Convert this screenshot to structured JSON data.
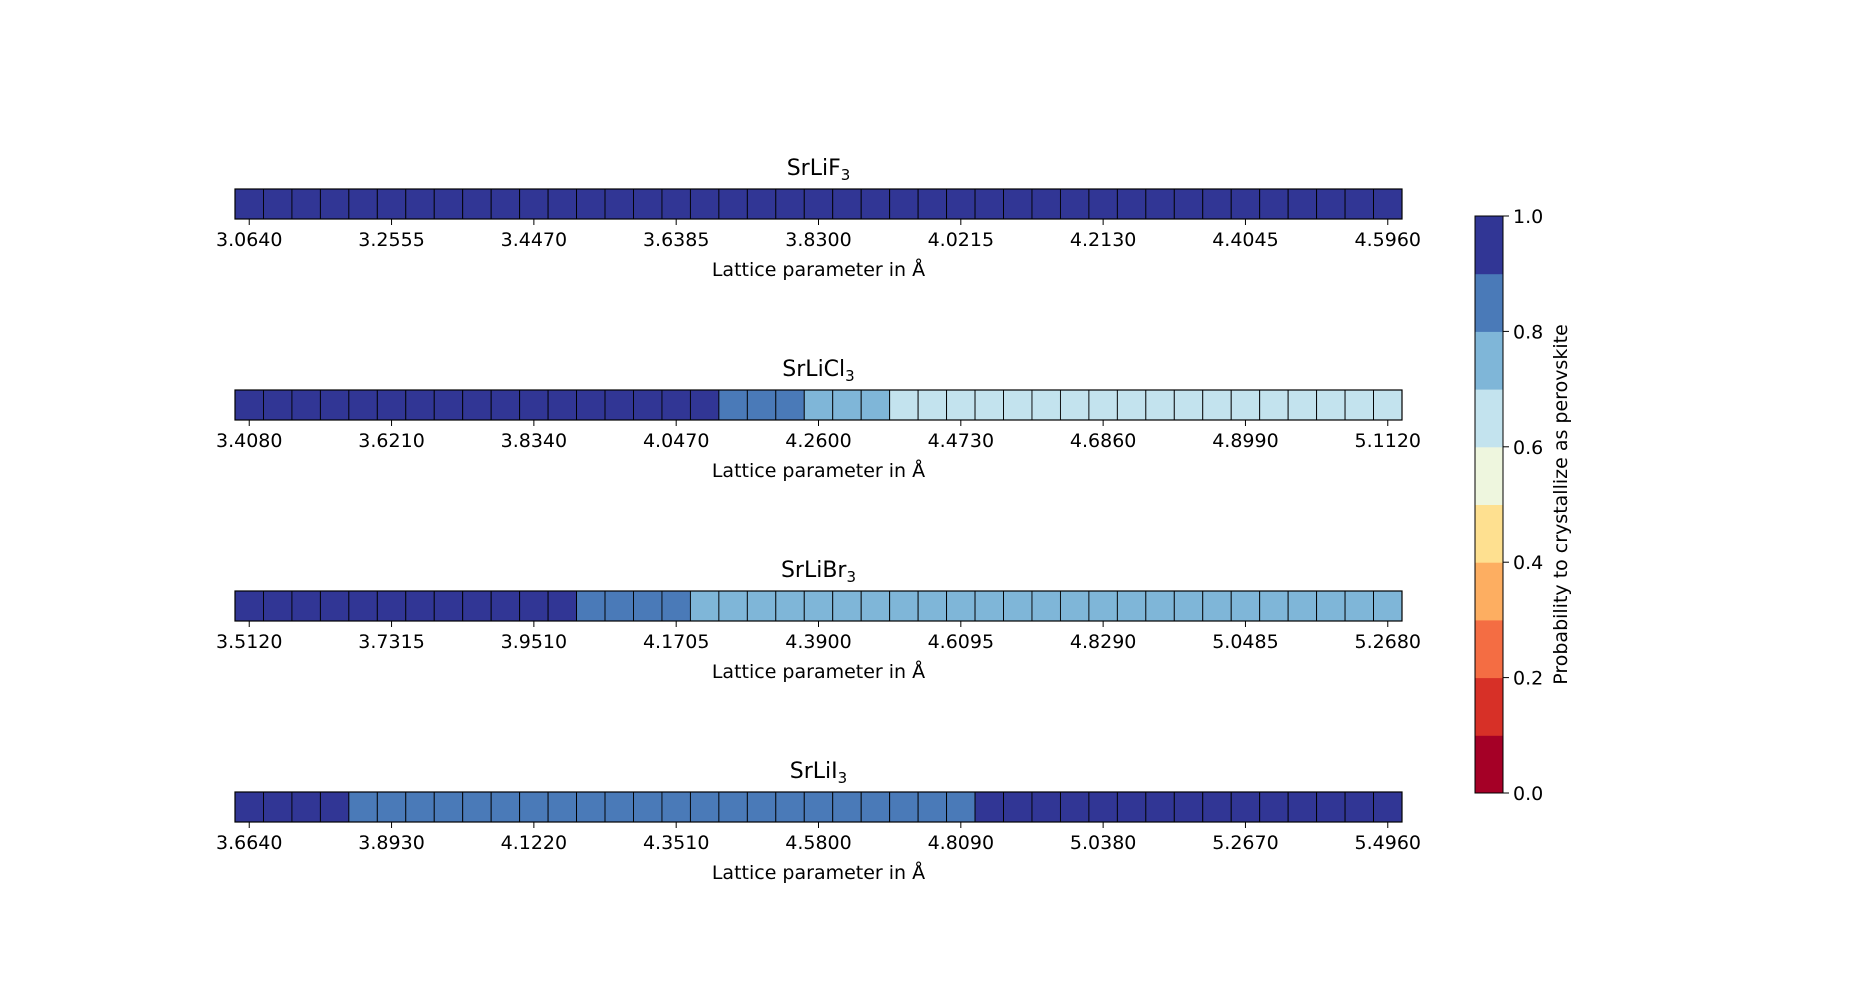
{
  "chart_data": {
    "type": "heatmap",
    "panels": [
      {
        "name": "SrLiF3",
        "title": {
          "base": "SrLiF",
          "sub": "3"
        },
        "xlabel": "Lattice parameter in Å",
        "tick_labels": [
          "3.0640",
          "3.2555",
          "3.4470",
          "3.6385",
          "3.8300",
          "4.0215",
          "4.2130",
          "4.4045",
          "4.5960"
        ],
        "values": [
          0.95,
          0.95,
          0.95,
          0.95,
          0.95,
          0.95,
          0.95,
          0.95,
          0.95,
          0.95,
          0.95,
          0.95,
          0.95,
          0.95,
          0.95,
          0.95,
          0.95,
          0.95,
          0.95,
          0.95,
          0.95,
          0.95,
          0.95,
          0.95,
          0.95,
          0.95,
          0.95,
          0.95,
          0.95,
          0.95,
          0.95,
          0.95,
          0.95,
          0.95,
          0.95,
          0.95,
          0.95,
          0.95,
          0.95,
          0.95,
          0.95
        ]
      },
      {
        "name": "SrLiCl3",
        "title": {
          "base": "SrLiCl",
          "sub": "3"
        },
        "xlabel": "Lattice parameter in Å",
        "tick_labels": [
          "3.4080",
          "3.6210",
          "3.8340",
          "4.0470",
          "4.2600",
          "4.4730",
          "4.6860",
          "4.8990",
          "5.1120"
        ],
        "values": [
          0.95,
          0.95,
          0.95,
          0.95,
          0.95,
          0.95,
          0.95,
          0.95,
          0.95,
          0.95,
          0.95,
          0.95,
          0.95,
          0.95,
          0.95,
          0.95,
          0.95,
          0.85,
          0.85,
          0.85,
          0.75,
          0.75,
          0.75,
          0.65,
          0.65,
          0.65,
          0.65,
          0.65,
          0.65,
          0.65,
          0.65,
          0.65,
          0.65,
          0.65,
          0.65,
          0.65,
          0.65,
          0.65,
          0.65,
          0.65,
          0.65
        ]
      },
      {
        "name": "SrLiBr3",
        "title": {
          "base": "SrLiBr",
          "sub": "3"
        },
        "xlabel": "Lattice parameter in Å",
        "tick_labels": [
          "3.5120",
          "3.7315",
          "3.9510",
          "4.1705",
          "4.3900",
          "4.6095",
          "4.8290",
          "5.0485",
          "5.2680"
        ],
        "values": [
          0.95,
          0.95,
          0.95,
          0.95,
          0.95,
          0.95,
          0.95,
          0.95,
          0.95,
          0.95,
          0.95,
          0.95,
          0.85,
          0.85,
          0.85,
          0.85,
          0.75,
          0.75,
          0.75,
          0.75,
          0.75,
          0.75,
          0.75,
          0.75,
          0.75,
          0.75,
          0.75,
          0.75,
          0.75,
          0.75,
          0.75,
          0.75,
          0.75,
          0.75,
          0.75,
          0.75,
          0.75,
          0.75,
          0.75,
          0.75,
          0.75
        ]
      },
      {
        "name": "SrLiI3",
        "title": {
          "base": "SrLiI",
          "sub": "3"
        },
        "xlabel": "Lattice parameter in Å",
        "tick_labels": [
          "3.6640",
          "3.8930",
          "4.1220",
          "4.3510",
          "4.5800",
          "4.8090",
          "5.0380",
          "5.2670",
          "5.4960"
        ],
        "values": [
          0.95,
          0.95,
          0.95,
          0.95,
          0.85,
          0.85,
          0.85,
          0.85,
          0.85,
          0.85,
          0.85,
          0.85,
          0.85,
          0.85,
          0.85,
          0.85,
          0.85,
          0.85,
          0.85,
          0.85,
          0.85,
          0.85,
          0.85,
          0.85,
          0.85,
          0.85,
          0.95,
          0.95,
          0.95,
          0.95,
          0.95,
          0.95,
          0.95,
          0.95,
          0.95,
          0.95,
          0.95,
          0.95,
          0.95,
          0.95,
          0.95
        ]
      }
    ],
    "colorbar": {
      "label": "Probability to crystallize as perovskite",
      "range": [
        0.0,
        1.0
      ],
      "tick_labels": [
        "0.0",
        "0.2",
        "0.4",
        "0.6",
        "0.8",
        "1.0"
      ],
      "bins": [
        {
          "min": 0.0,
          "max": 0.1,
          "color": "#a50026"
        },
        {
          "min": 0.1,
          "max": 0.2,
          "color": "#d73027"
        },
        {
          "min": 0.2,
          "max": 0.3,
          "color": "#f46d43"
        },
        {
          "min": 0.3,
          "max": 0.4,
          "color": "#fdae61"
        },
        {
          "min": 0.4,
          "max": 0.5,
          "color": "#fee090"
        },
        {
          "min": 0.5,
          "max": 0.6,
          "color": "#eef6de"
        },
        {
          "min": 0.6,
          "max": 0.7,
          "color": "#c3e3ee"
        },
        {
          "min": 0.7,
          "max": 0.8,
          "color": "#7fb6d8"
        },
        {
          "min": 0.8,
          "max": 0.9,
          "color": "#4a7ab8"
        },
        {
          "min": 0.9,
          "max": 1.0,
          "color": "#313695"
        }
      ]
    }
  }
}
